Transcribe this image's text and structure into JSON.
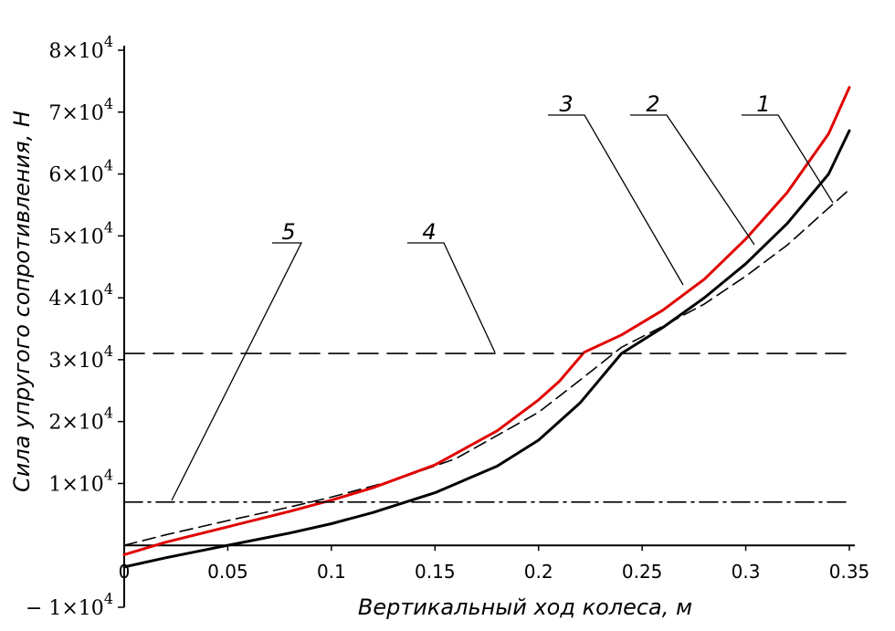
{
  "chart_data": {
    "type": "line",
    "xlabel": "Вертикальный ход колеса, м",
    "ylabel": "Сила упругого сопротивления, Н",
    "xlim": [
      0,
      0.35
    ],
    "ylim": [
      -10000,
      80000
    ],
    "x_ticks": [
      {
        "value": 0,
        "label": "0"
      },
      {
        "value": 0.05,
        "label": "0.05"
      },
      {
        "value": 0.1,
        "label": "0.1"
      },
      {
        "value": 0.15,
        "label": "0.15"
      },
      {
        "value": 0.2,
        "label": "0.2"
      },
      {
        "value": 0.25,
        "label": "0.25"
      },
      {
        "value": 0.3,
        "label": "0.3"
      },
      {
        "value": 0.35,
        "label": "0.35"
      }
    ],
    "y_ticks": [
      {
        "value": -10000,
        "sign": "−",
        "mantissa": "1",
        "exp": "4"
      },
      {
        "value": 10000,
        "sign": "",
        "mantissa": "1",
        "exp": "4"
      },
      {
        "value": 20000,
        "sign": "",
        "mantissa": "2",
        "exp": "4"
      },
      {
        "value": 30000,
        "sign": "",
        "mantissa": "3",
        "exp": "4"
      },
      {
        "value": 40000,
        "sign": "",
        "mantissa": "4",
        "exp": "4"
      },
      {
        "value": 50000,
        "sign": "",
        "mantissa": "5",
        "exp": "4"
      },
      {
        "value": 60000,
        "sign": "",
        "mantissa": "6",
        "exp": "4"
      },
      {
        "value": 70000,
        "sign": "",
        "mantissa": "7",
        "exp": "4"
      },
      {
        "value": 80000,
        "sign": "",
        "mantissa": "8",
        "exp": "4"
      }
    ],
    "grid": false,
    "series": [
      {
        "name": "1",
        "color": "#000000",
        "dash": "dashed",
        "x": [
          0,
          0.02,
          0.05,
          0.08,
          0.1,
          0.13,
          0.16,
          0.2,
          0.22,
          0.24,
          0.26,
          0.28,
          0.3,
          0.32,
          0.34,
          0.35
        ],
        "y": [
          0,
          1700,
          4000,
          6200,
          7800,
          10500,
          14000,
          21500,
          26700,
          32000,
          35400,
          39000,
          43500,
          48500,
          54500,
          57500
        ]
      },
      {
        "name": "2",
        "color": "#000000",
        "dash": "solid",
        "x": [
          0,
          0.02,
          0.05,
          0.08,
          0.1,
          0.12,
          0.15,
          0.18,
          0.2,
          0.22,
          0.24,
          0.26,
          0.28,
          0.3,
          0.32,
          0.34,
          0.35
        ],
        "y": [
          -3500,
          -2000,
          0,
          2000,
          3500,
          5300,
          8500,
          12800,
          17000,
          23000,
          31000,
          35200,
          40000,
          45500,
          52000,
          60000,
          67000
        ]
      },
      {
        "name": "3",
        "color": "#e00000",
        "dash": "solid",
        "x": [
          0,
          0.02,
          0.05,
          0.08,
          0.1,
          0.12,
          0.15,
          0.18,
          0.2,
          0.21,
          0.222,
          0.24,
          0.26,
          0.28,
          0.3,
          0.32,
          0.34,
          0.35
        ],
        "y": [
          -1500,
          500,
          3000,
          5500,
          7300,
          9300,
          13000,
          18500,
          23500,
          26500,
          31200,
          34000,
          38000,
          43000,
          49500,
          57000,
          66500,
          74000
        ]
      },
      {
        "name": "4",
        "color": "#000000",
        "dash": "longdash",
        "x": [
          0,
          0.35
        ],
        "y": [
          31000,
          31000
        ]
      },
      {
        "name": "5",
        "color": "#000000",
        "dash": "dashdot",
        "x": [
          0,
          0.35
        ],
        "y": [
          7000,
          7000
        ]
      }
    ],
    "annotations": [
      {
        "text": "1",
        "series": "1"
      },
      {
        "text": "2",
        "series": "2"
      },
      {
        "text": "3",
        "series": "3"
      },
      {
        "text": "4",
        "series": "4"
      },
      {
        "text": "5",
        "series": "5"
      }
    ]
  }
}
